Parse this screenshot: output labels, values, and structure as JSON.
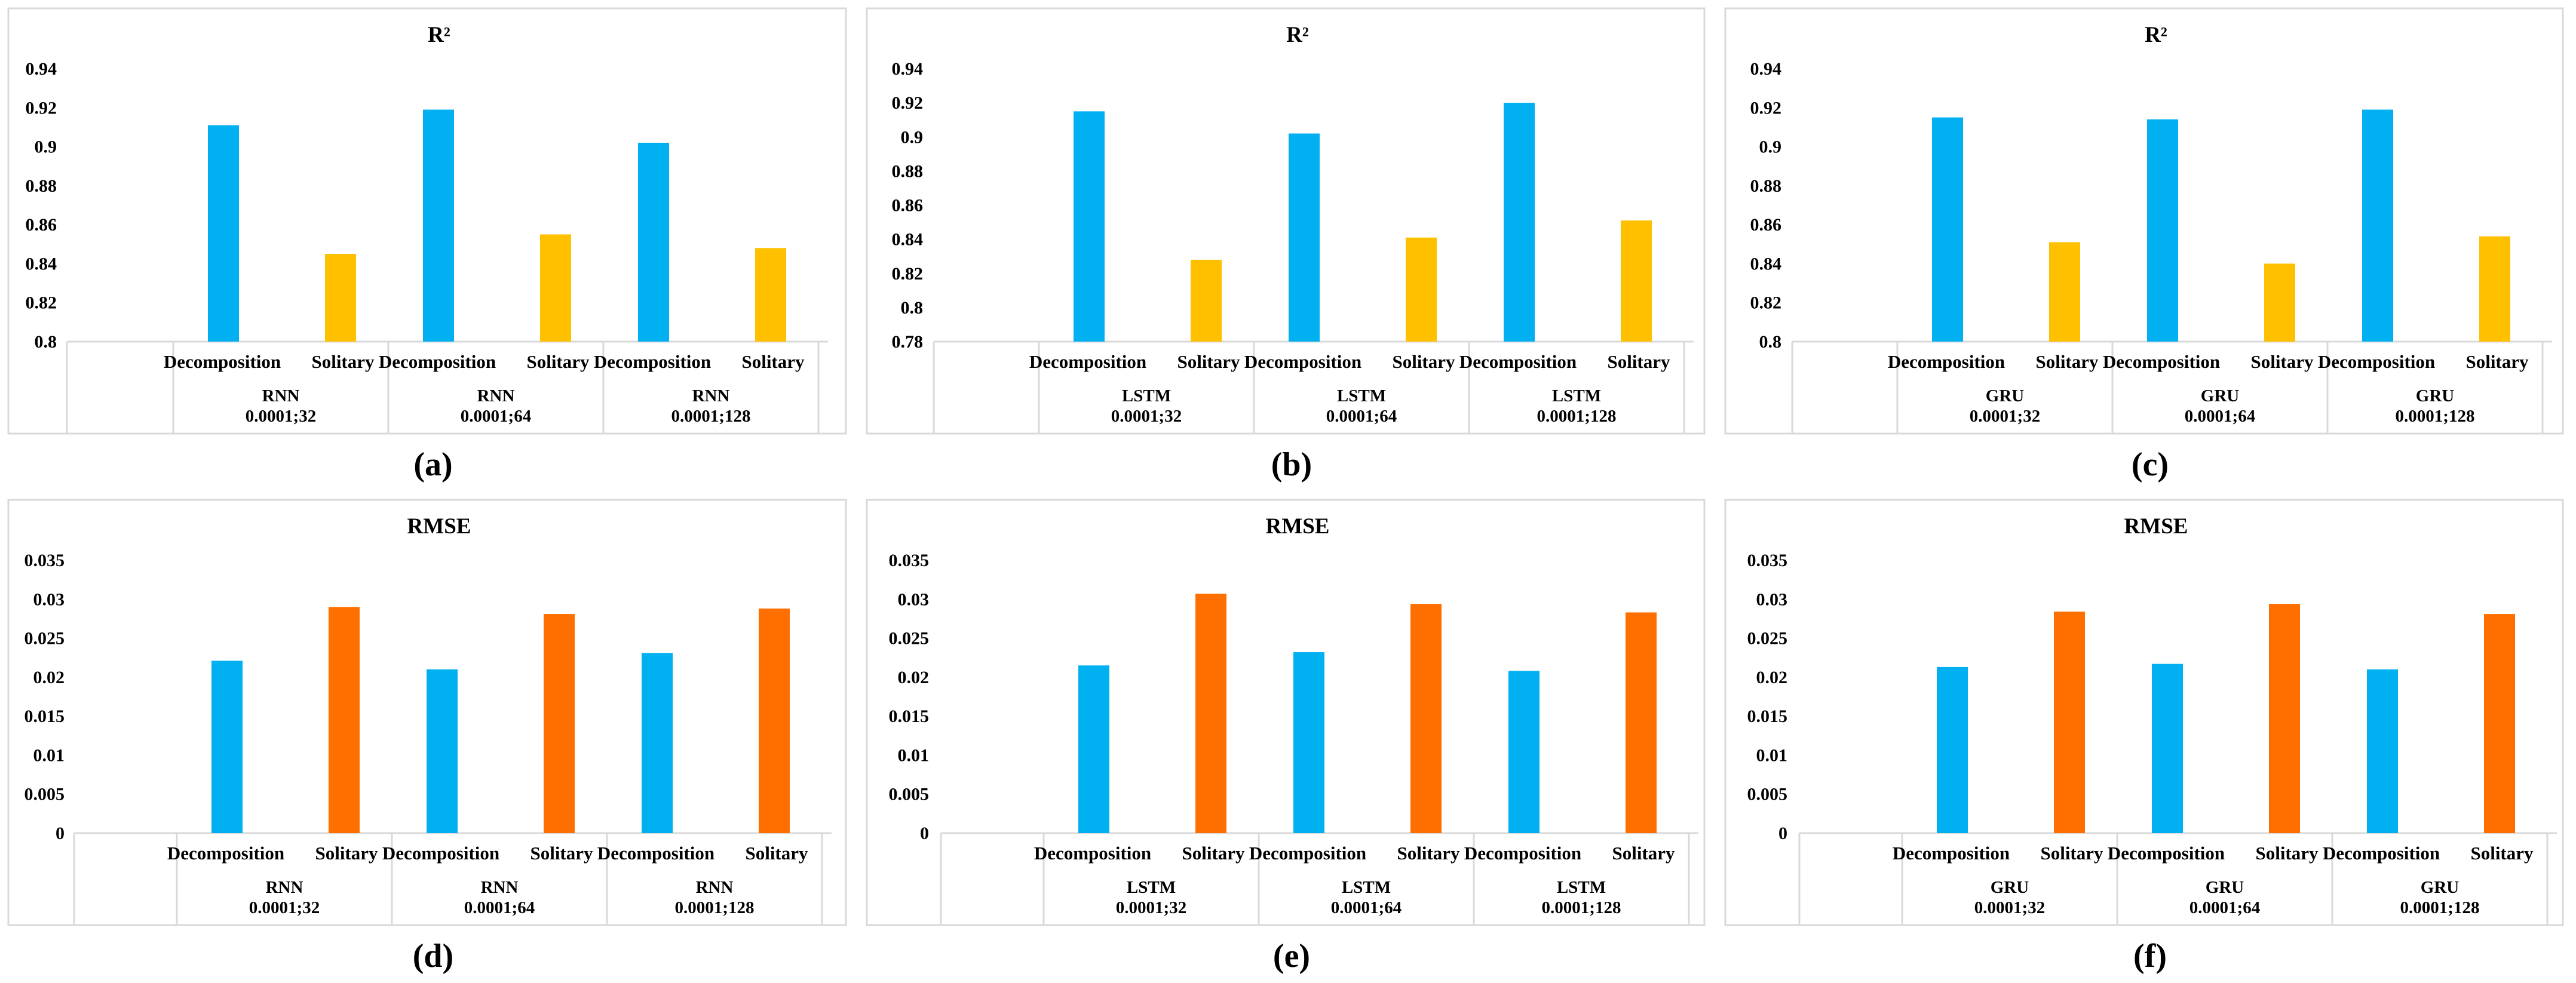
{
  "colors": {
    "blue": "#00b0f0",
    "yellow": "#ffc000",
    "orange": "#ff6f00"
  },
  "chart_data": [
    {
      "type": "bar",
      "id": "a",
      "panel_label": "(a)",
      "title": "R²",
      "metric": "R2",
      "ylim": [
        0.8,
        0.94
      ],
      "yticks": [
        "0.8",
        "0.82",
        "0.84",
        "0.86",
        "0.88",
        "0.9",
        "0.92",
        "0.94"
      ],
      "categories": [
        "Decomposition",
        "Solitary",
        "Decomposition",
        "Solitary",
        "Decomposition",
        "Solitary"
      ],
      "groups": [
        {
          "model": "RNN",
          "param": "0.0001;32"
        },
        {
          "model": "RNN",
          "param": "0.0001;64"
        },
        {
          "model": "RNN",
          "param": "0.0001;128"
        }
      ],
      "values": [
        0.911,
        0.845,
        0.919,
        0.855,
        0.902,
        0.848
      ],
      "colors": [
        "blue",
        "yellow",
        "blue",
        "yellow",
        "blue",
        "yellow"
      ]
    },
    {
      "type": "bar",
      "id": "b",
      "panel_label": "(b)",
      "title": "R²",
      "metric": "R2",
      "ylim": [
        0.78,
        0.94
      ],
      "yticks": [
        "0.78",
        "0.8",
        "0.82",
        "0.84",
        "0.86",
        "0.88",
        "0.9",
        "0.92",
        "0.94"
      ],
      "categories": [
        "Decomposition",
        "Solitary",
        "Decomposition",
        "Solitary",
        "Decomposition",
        "Solitary"
      ],
      "groups": [
        {
          "model": "LSTM",
          "param": "0.0001;32"
        },
        {
          "model": "LSTM",
          "param": "0.0001;64"
        },
        {
          "model": "LSTM",
          "param": "0.0001;128"
        }
      ],
      "values": [
        0.915,
        0.828,
        0.902,
        0.841,
        0.92,
        0.851
      ],
      "colors": [
        "blue",
        "yellow",
        "blue",
        "yellow",
        "blue",
        "yellow"
      ]
    },
    {
      "type": "bar",
      "id": "c",
      "panel_label": "(c)",
      "title": "R²",
      "metric": "R2",
      "ylim": [
        0.8,
        0.94
      ],
      "yticks": [
        "0.8",
        "0.82",
        "0.84",
        "0.86",
        "0.88",
        "0.9",
        "0.92",
        "0.94"
      ],
      "categories": [
        "Decomposition",
        "Solitary",
        "Decomposition",
        "Solitary",
        "Decomposition",
        "Solitary"
      ],
      "groups": [
        {
          "model": "GRU",
          "param": "0.0001;32"
        },
        {
          "model": "GRU",
          "param": "0.0001;64"
        },
        {
          "model": "GRU",
          "param": "0.0001;128"
        }
      ],
      "values": [
        0.915,
        0.851,
        0.914,
        0.84,
        0.919,
        0.854
      ],
      "colors": [
        "blue",
        "yellow",
        "blue",
        "yellow",
        "blue",
        "yellow"
      ]
    },
    {
      "type": "bar",
      "id": "d",
      "panel_label": "(d)",
      "title": "RMSE",
      "metric": "RMSE",
      "ylim": [
        0,
        0.035
      ],
      "yticks": [
        "0",
        "0.005",
        "0.01",
        "0.015",
        "0.02",
        "0.025",
        "0.03",
        "0.035"
      ],
      "categories": [
        "Decomposition",
        "Solitary",
        "Decomposition",
        "Solitary",
        "Decomposition",
        "Solitary"
      ],
      "groups": [
        {
          "model": "RNN",
          "param": "0.0001;32"
        },
        {
          "model": "RNN",
          "param": "0.0001;64"
        },
        {
          "model": "RNN",
          "param": "0.0001;128"
        }
      ],
      "values": [
        0.0221,
        0.029,
        0.021,
        0.0281,
        0.0231,
        0.0288
      ],
      "colors": [
        "blue",
        "orange",
        "blue",
        "orange",
        "blue",
        "orange"
      ]
    },
    {
      "type": "bar",
      "id": "e",
      "panel_label": "(e)",
      "title": "RMSE",
      "metric": "RMSE",
      "ylim": [
        0,
        0.035
      ],
      "yticks": [
        "0",
        "0.005",
        "0.01",
        "0.015",
        "0.02",
        "0.025",
        "0.03",
        "0.035"
      ],
      "categories": [
        "Decomposition",
        "Solitary",
        "Decomposition",
        "Solitary",
        "Decomposition",
        "Solitary"
      ],
      "groups": [
        {
          "model": "LSTM",
          "param": "0.0001;32"
        },
        {
          "model": "LSTM",
          "param": "0.0001;64"
        },
        {
          "model": "LSTM",
          "param": "0.0001;128"
        }
      ],
      "values": [
        0.0215,
        0.0307,
        0.0232,
        0.0294,
        0.0208,
        0.0283
      ],
      "colors": [
        "blue",
        "orange",
        "blue",
        "orange",
        "blue",
        "orange"
      ]
    },
    {
      "type": "bar",
      "id": "f",
      "panel_label": "(f)",
      "title": "RMSE",
      "metric": "RMSE",
      "ylim": [
        0,
        0.035
      ],
      "yticks": [
        "0",
        "0.005",
        "0.01",
        "0.015",
        "0.02",
        "0.025",
        "0.03",
        "0.035"
      ],
      "categories": [
        "Decomposition",
        "Solitary",
        "Decomposition",
        "Solitary",
        "Decomposition",
        "Solitary"
      ],
      "groups": [
        {
          "model": "GRU",
          "param": "0.0001;32"
        },
        {
          "model": "GRU",
          "param": "0.0001;64"
        },
        {
          "model": "GRU",
          "param": "0.0001;128"
        }
      ],
      "values": [
        0.0213,
        0.0284,
        0.0217,
        0.0294,
        0.021,
        0.0281
      ],
      "colors": [
        "blue",
        "orange",
        "blue",
        "orange",
        "blue",
        "orange"
      ]
    }
  ]
}
